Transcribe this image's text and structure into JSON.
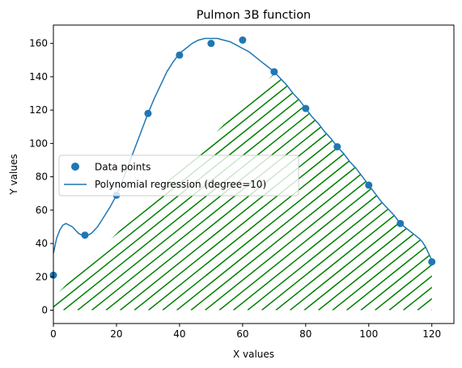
{
  "chart_data": {
    "type": "scatter",
    "title": "Pulmon 3B function",
    "xlabel": "X values",
    "ylabel": "Y values",
    "xlim": [
      0,
      127
    ],
    "ylim": [
      -8,
      171
    ],
    "xticks": [
      "0",
      "20",
      "40",
      "60",
      "80",
      "100",
      "120"
    ],
    "yticks": [
      "0",
      "20",
      "40",
      "60",
      "80",
      "100",
      "120",
      "140",
      "160"
    ],
    "grid": false,
    "legend_position": "center-left",
    "series": [
      {
        "name": "Data points",
        "kind": "scatter",
        "color": "#1f77b4",
        "x": [
          0,
          10,
          20,
          30,
          40,
          50,
          60,
          70,
          80,
          90,
          100,
          110,
          120
        ],
        "y": [
          21,
          45,
          69,
          118,
          153,
          160,
          162,
          143,
          121,
          98,
          75,
          52,
          29
        ]
      },
      {
        "name": "Polynomial regression (degree=10)",
        "kind": "line",
        "color": "#1f77b4",
        "x": [
          0,
          1,
          2,
          3,
          4,
          5,
          6,
          7,
          8,
          9,
          10,
          11,
          12,
          14,
          16,
          18,
          20,
          22,
          24,
          26,
          28,
          30,
          32,
          34,
          36,
          38,
          40,
          42,
          44,
          46,
          48,
          50,
          52,
          54,
          56,
          58,
          60,
          62,
          64,
          66,
          68,
          70,
          72,
          74,
          76,
          78,
          80,
          82,
          84,
          86,
          88,
          90,
          92,
          94,
          96,
          98,
          100,
          102,
          104,
          106,
          108,
          110,
          112,
          114,
          116,
          117,
          118,
          119,
          120
        ],
        "y": [
          34,
          43,
          48,
          51,
          52,
          51,
          50,
          48,
          46,
          45,
          44,
          45,
          46,
          50,
          56,
          62,
          69,
          78,
          88,
          98,
          108,
          118,
          127,
          135,
          143,
          149,
          154,
          157,
          160,
          162,
          163,
          163,
          163,
          162,
          161,
          159,
          157,
          155,
          152,
          149,
          146,
          143,
          139,
          135,
          130,
          126,
          121,
          116,
          112,
          107,
          103,
          98,
          94,
          89,
          85,
          80,
          75,
          70,
          65,
          61,
          57,
          52,
          49,
          46,
          43,
          41,
          38,
          34,
          30
        ]
      }
    ],
    "fill": {
      "kind": "hatch",
      "color": "#008000",
      "region": "between polynomial curve and y=0, bounded above by the hatch edge line",
      "edge_line": {
        "x": [
          0,
          70
        ],
        "y": [
          7.5,
          142
        ]
      },
      "x_range": [
        0,
        120
      ]
    }
  }
}
